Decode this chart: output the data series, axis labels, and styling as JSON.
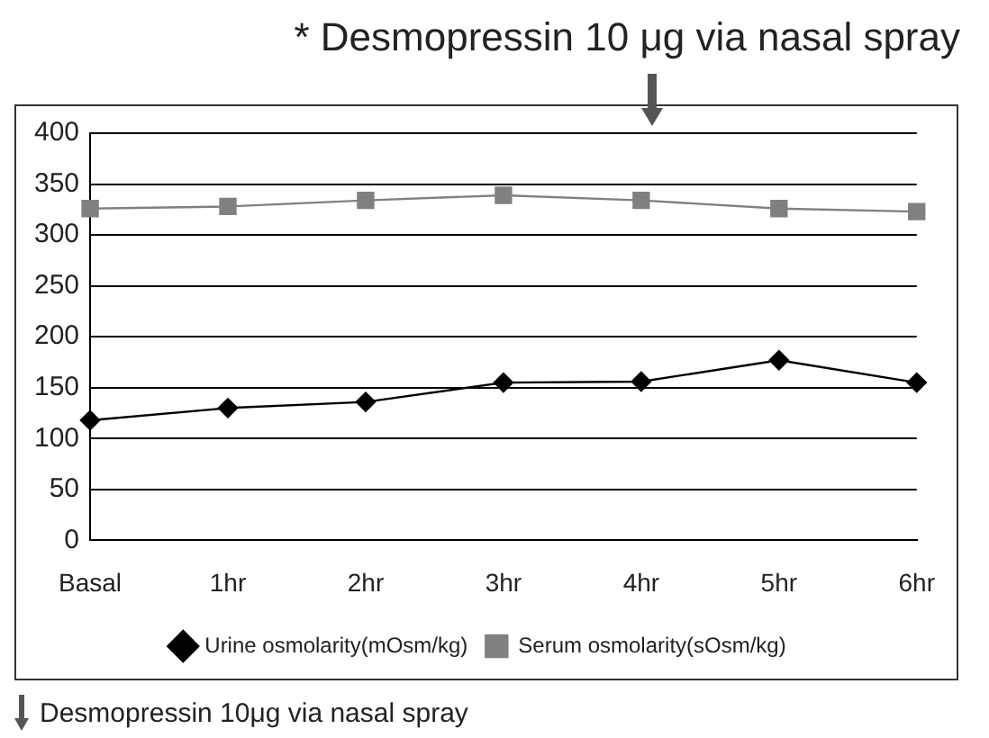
{
  "chart_data": {
    "type": "line",
    "categories": [
      "Basal",
      "1hr",
      "2hr",
      "3hr",
      "4hr",
      "5hr",
      "6hr"
    ],
    "series": [
      {
        "name": "Urine osmolarity(mOsm/kg)",
        "color": "#000000",
        "values": [
          118,
          130,
          136,
          155,
          156,
          177,
          155
        ],
        "marker": "diamond"
      },
      {
        "name": "Serum osmolarity(sOsm/kg)",
        "color": "#808080",
        "values": [
          326,
          328,
          334,
          339,
          334,
          326,
          323
        ],
        "marker": "square"
      }
    ],
    "ylim": [
      0,
      400
    ],
    "yticks": [
      0,
      50,
      100,
      150,
      200,
      250,
      300,
      350,
      400
    ],
    "grid": "y",
    "legend": "bottom",
    "line_style": "solid",
    "annotations": [
      "* Desmopressin 10 μg via nasal spray",
      "Desmopressin 10μg via nasal spray"
    ]
  }
}
